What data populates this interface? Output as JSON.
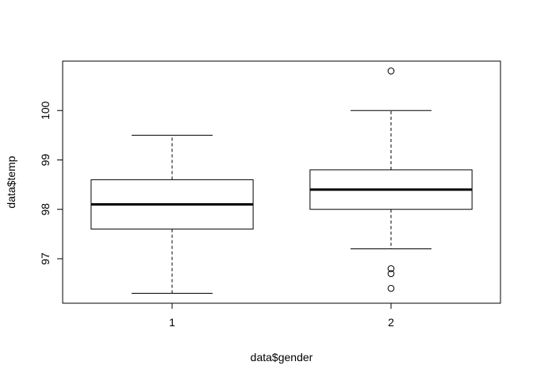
{
  "chart_data": {
    "type": "boxplot",
    "title": "",
    "xlabel": "data$gender",
    "ylabel": "data$temp",
    "categories": [
      "1",
      "2"
    ],
    "ylim": [
      96.1,
      101.0
    ],
    "yticks": [
      97,
      98,
      99,
      100
    ],
    "grid": false,
    "boxes": [
      {
        "category": "1",
        "whisker_low": 96.3,
        "q1": 97.6,
        "median": 98.1,
        "q3": 98.6,
        "whisker_high": 99.5,
        "outliers": []
      },
      {
        "category": "2",
        "whisker_low": 97.2,
        "q1": 98.0,
        "median": 98.4,
        "q3": 98.8,
        "whisker_high": 100.0,
        "outliers": [
          96.4,
          96.7,
          96.8,
          100.8
        ]
      }
    ]
  }
}
